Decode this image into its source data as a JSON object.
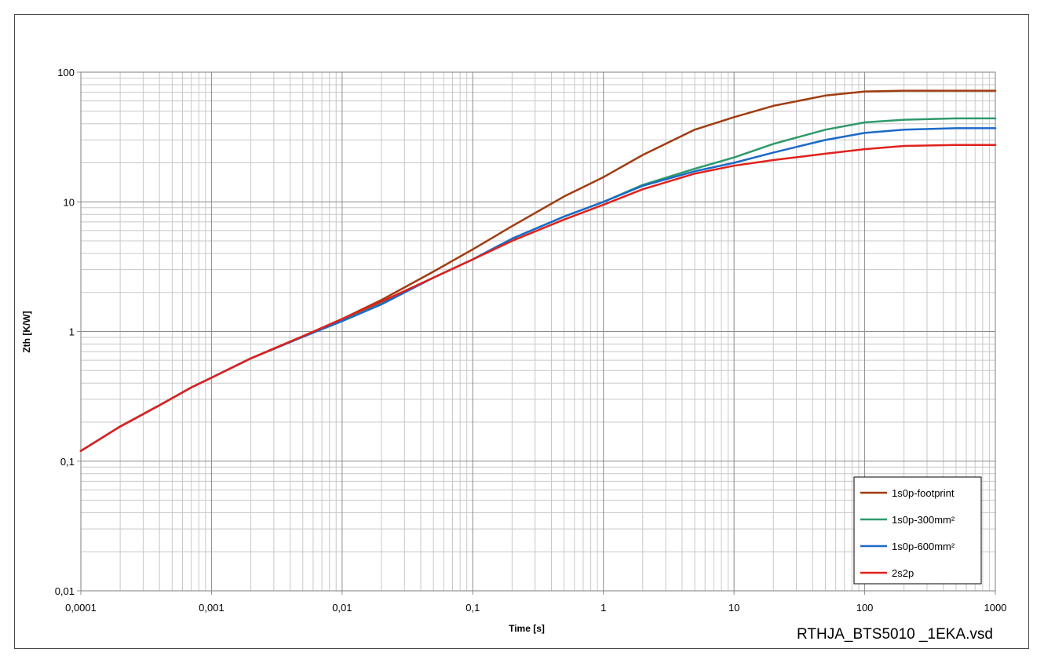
{
  "chart_data": {
    "type": "line",
    "x_scale": "log",
    "y_scale": "log",
    "xlim": [
      0.0001,
      1000
    ],
    "ylim": [
      0.01,
      100
    ],
    "xlabel": "Time [s]",
    "ylabel": "Zth [K/W]",
    "grid": true,
    "legend_position": "bottom-right",
    "x_tick_labels": [
      "0,0001",
      "0,001",
      "0,01",
      "0,1",
      "1",
      "10",
      "100",
      "1000"
    ],
    "y_tick_labels": [
      "0,01",
      "0,1",
      "1",
      "10",
      "100"
    ],
    "series": [
      {
        "name": "1s0p-footprint",
        "color": "#a03c10",
        "x": [
          0.0001,
          0.0002,
          0.0004,
          0.0007,
          0.001,
          0.002,
          0.005,
          0.01,
          0.02,
          0.05,
          0.1,
          0.2,
          0.5,
          1,
          2,
          5,
          10,
          20,
          50,
          100,
          200,
          500,
          1000
        ],
        "y": [
          0.12,
          0.185,
          0.27,
          0.37,
          0.44,
          0.62,
          0.92,
          1.25,
          1.75,
          2.9,
          4.3,
          6.5,
          11,
          15.5,
          23,
          36,
          45,
          55,
          66,
          71,
          72,
          72,
          72
        ]
      },
      {
        "name": "1s0p-300mm²",
        "color": "#2e9a6a",
        "x": [
          0.0001,
          0.0002,
          0.0004,
          0.0007,
          0.001,
          0.002,
          0.005,
          0.01,
          0.02,
          0.05,
          0.1,
          0.2,
          0.5,
          1,
          2,
          5,
          10,
          20,
          50,
          100,
          200,
          500,
          1000
        ],
        "y": [
          0.12,
          0.185,
          0.27,
          0.37,
          0.44,
          0.62,
          0.91,
          1.22,
          1.65,
          2.6,
          3.6,
          5.2,
          7.7,
          10,
          13.5,
          18,
          22,
          28,
          36,
          41,
          43,
          44,
          44
        ]
      },
      {
        "name": "1s0p-600mm²",
        "color": "#1c6ac8",
        "x": [
          0.0001,
          0.0002,
          0.0004,
          0.0007,
          0.001,
          0.002,
          0.005,
          0.01,
          0.02,
          0.05,
          0.1,
          0.2,
          0.5,
          1,
          2,
          5,
          10,
          20,
          50,
          100,
          200,
          500,
          1000
        ],
        "y": [
          0.12,
          0.185,
          0.27,
          0.37,
          0.44,
          0.62,
          0.91,
          1.2,
          1.62,
          2.6,
          3.6,
          5.2,
          7.7,
          10,
          13.3,
          17.2,
          20,
          24,
          30,
          34,
          36,
          37,
          37
        ]
      },
      {
        "name": "2s2p",
        "color": "#e0211c",
        "x": [
          0.0001,
          0.0002,
          0.0004,
          0.0007,
          0.001,
          0.002,
          0.005,
          0.01,
          0.02,
          0.05,
          0.1,
          0.2,
          0.5,
          1,
          2,
          5,
          10,
          20,
          50,
          100,
          200,
          500,
          1000
        ],
        "y": [
          0.12,
          0.185,
          0.27,
          0.37,
          0.44,
          0.62,
          0.92,
          1.25,
          1.7,
          2.6,
          3.6,
          5,
          7.3,
          9.5,
          12.5,
          16.5,
          19,
          21,
          23.5,
          25.5,
          27,
          27.5,
          27.5
        ]
      }
    ]
  },
  "footer": {
    "filename": "RTHJA_BTS5010 _1EKA.vsd"
  }
}
